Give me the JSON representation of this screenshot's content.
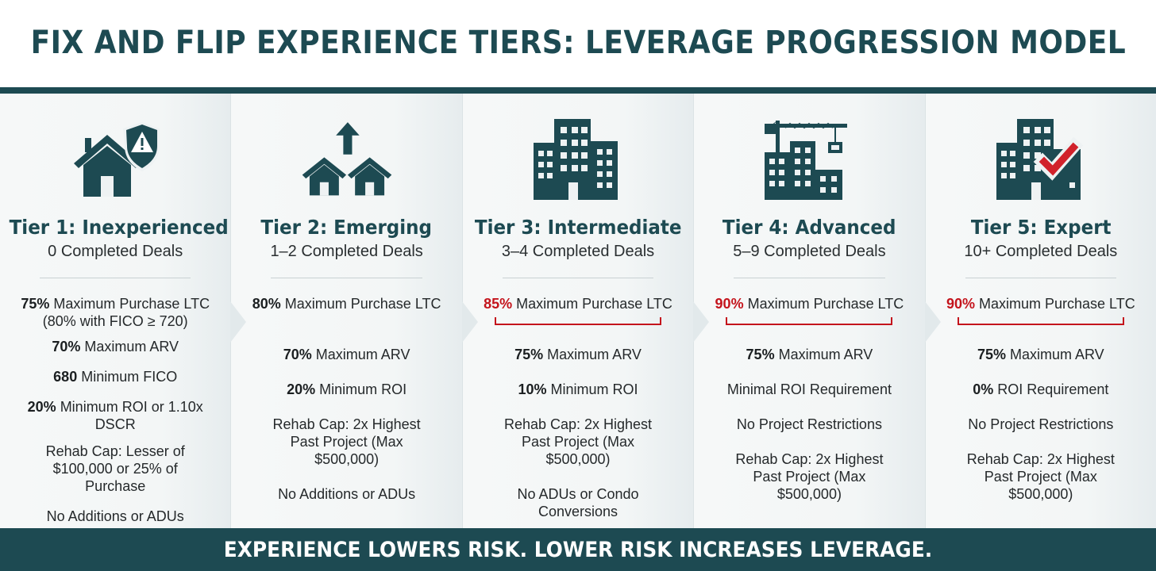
{
  "title": "FIX AND FLIP EXPERIENCE TIERS: LEVERAGE PROGRESSION MODEL",
  "footer": "EXPERIENCE LOWERS RISK. LOWER RISK INCREASES LEVERAGE.",
  "colors": {
    "primary": "#1d4a52",
    "accent_red": "#c4141c",
    "panel_bg": "#eef2f3"
  },
  "tiers": [
    {
      "name": "Tier 1: Inexperienced",
      "deals": "0 Completed Deals",
      "icon": "house-with-warning-shield-icon",
      "ltc_value": "75%",
      "ltc_label": " Maximum Purchase LTC",
      "ltc_note": "(80% with FICO ≥ 720)",
      "arv_value": "70%",
      "arv_label": " Maximum ARV",
      "fico_value": "680",
      "fico_label": " Minimum FICO",
      "roi_value": "20%",
      "roi_label": " Minimum ROI or 1.10x DSCR",
      "rehab": "Rehab Cap: Lesser of $100,000 or 25% of Purchase",
      "restriction": "No Additions or ADUs"
    },
    {
      "name": "Tier 2: Emerging",
      "deals": "1–2 Completed Deals",
      "icon": "two-houses-arrow-up-icon",
      "ltc_value": "80%",
      "ltc_label": " Maximum Purchase LTC",
      "arv_value": "70%",
      "arv_label": " Maximum ARV",
      "roi_value": "20%",
      "roi_label": " Minimum ROI",
      "rehab": "Rehab Cap: 2x Highest Past Project (Max $500,000)",
      "restriction": "No Additions or ADUs"
    },
    {
      "name": "Tier 3: Intermediate",
      "deals": "3–4 Completed Deals",
      "icon": "apartment-building-icon",
      "ltc_value": "85%",
      "ltc_label": " Maximum Purchase LTC",
      "arv_value": "75%",
      "arv_label": " Maximum ARV",
      "roi_value": "10%",
      "roi_label": " Minimum ROI",
      "rehab": "Rehab Cap: 2x Highest Past Project (Max $500,000)",
      "restriction": "No ADUs or Condo Conversions"
    },
    {
      "name": "Tier 4: Advanced",
      "deals": "5–9 Completed Deals",
      "icon": "buildings-with-crane-icon",
      "ltc_value": "90%",
      "ltc_label": " Maximum Purchase LTC",
      "arv_value": "75%",
      "arv_label": " Maximum ARV",
      "roi_text": "Minimal ROI Requirement",
      "project": "No Project Restrictions",
      "rehab": "Rehab Cap: 2x Highest Past Project (Max $500,000)"
    },
    {
      "name": "Tier 5: Expert",
      "deals": "10+ Completed Deals",
      "icon": "buildings-with-checkmark-icon",
      "ltc_value": "90%",
      "ltc_label": " Maximum Purchase LTC",
      "arv_value": "75%",
      "arv_label": " Maximum ARV",
      "roi_value": "0%",
      "roi_label": " ROI Requirement",
      "project": "No Project Restrictions",
      "rehab": "Rehab Cap: 2x Highest Past Project (Max $500,000)"
    }
  ]
}
